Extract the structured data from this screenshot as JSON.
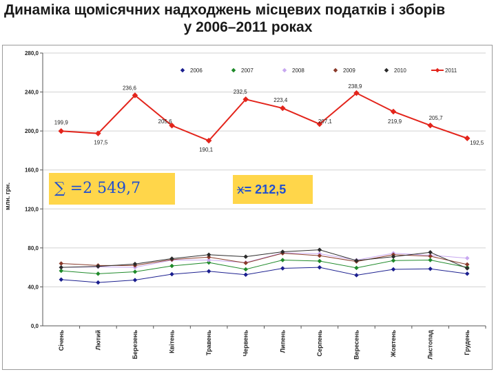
{
  "title": {
    "line1": "Динаміка щомісячних надходжень місцевих податків і зборів",
    "line2": "у 2006–2011 роках"
  },
  "annotations": {
    "sum_text": "∑ =2 549,7",
    "mean_symbol": "x",
    "mean_text": "= 212,5"
  },
  "chart_data": {
    "type": "line",
    "title": "",
    "xlabel": "",
    "ylabel": "млн. грн.",
    "ylim": [
      0,
      280
    ],
    "yticks": [
      0,
      40,
      80,
      120,
      160,
      200,
      240,
      280
    ],
    "ytick_labels": [
      "0,0",
      "40,0",
      "80,0",
      "120,0",
      "160,0",
      "200,0",
      "240,0",
      "280,0"
    ],
    "grid": "horizontal",
    "legend_position": "top",
    "categories": [
      "Січень",
      "Лютий",
      "Березень",
      "Квітень",
      "Травень",
      "Червень",
      "Липень",
      "Серпень",
      "Вересень",
      "Жовтень",
      "Листопад",
      "Грудень"
    ],
    "series": [
      {
        "name": "2006",
        "color": "#1b1f8f",
        "marker": "diamond",
        "values": [
          47.5,
          44.5,
          47,
          53,
          56,
          52.5,
          59,
          60,
          52,
          58,
          58.5,
          53.5
        ]
      },
      {
        "name": "2007",
        "color": "#1f8a2a",
        "marker": "diamond",
        "values": [
          56.5,
          53.5,
          55.5,
          61.5,
          65,
          58,
          67.5,
          66.5,
          59.5,
          67,
          67.5,
          60
        ]
      },
      {
        "name": "2008",
        "color": "#c8a8f0",
        "marker": "diamond",
        "values": [
          60,
          60.5,
          60,
          67.5,
          67.5,
          65,
          75,
          74,
          67.5,
          74.5,
          72.5,
          69.5
        ]
      },
      {
        "name": "2009",
        "color": "#8a3a2a",
        "marker": "diamond",
        "values": [
          64,
          62,
          62,
          68,
          70.5,
          64.5,
          74.5,
          72,
          66,
          73,
          71.5,
          63
        ]
      },
      {
        "name": "2010",
        "color": "#2a2a2a",
        "marker": "diamond",
        "values": [
          60,
          61,
          63.5,
          69,
          73,
          71,
          76,
          78,
          67,
          71,
          75.5,
          59
        ]
      },
      {
        "name": "2011",
        "color": "#e3241b",
        "marker": "diamond",
        "values": [
          199.9,
          197.5,
          236.6,
          205.6,
          190.1,
          232.5,
          223.4,
          207.1,
          238.9,
          219.9,
          205.7,
          192.5
        ],
        "labels": [
          "199,9",
          "197,5",
          "236,6",
          "205,6",
          "190,1",
          "232,5",
          "223,4",
          "207,1",
          "238,9",
          "219,9",
          "205,7",
          "192,5"
        ]
      }
    ]
  }
}
